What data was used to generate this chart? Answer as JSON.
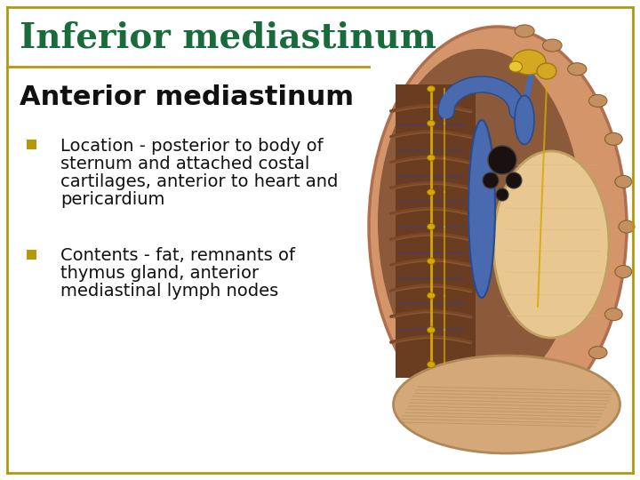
{
  "title": "Inferior mediastinum",
  "subtitle": "Anterior mediastinum",
  "title_color": "#1a6b3c",
  "subtitle_color": "#111111",
  "bullet_color": "#b8960a",
  "text_color": "#111111",
  "background_color": "#ffffff",
  "border_color": "#b8960a",
  "bullet1_lines": [
    "Location - posterior to body of",
    "sternum and attached costal",
    "cartilages, anterior to heart and",
    "pericardium"
  ],
  "bullet2_lines": [
    "Contents - fat, remnants of",
    "thymus gland, anterior",
    "mediastinal lymph nodes"
  ],
  "title_fontsize": 28,
  "subtitle_fontsize": 22,
  "bullet_fontsize": 14,
  "border_linewidth": 2.0,
  "anat_colors": {
    "outer_body": "#d4956a",
    "outer_body_edge": "#b07050",
    "inner_dark": "#8b5a3a",
    "ribs_dark": "#7a4828",
    "posterior_wall": "#6a3c20",
    "heart_pericardium": "#e8c890",
    "heart_edge": "#c0a060",
    "diaphragm": "#d4a878",
    "diaphragm_edge": "#b08858",
    "vessel_blue": "#4a6ab0",
    "vessel_blue_edge": "#2a4a90",
    "nerve_yellow": "#d4a800",
    "costal_dot": "#c49060",
    "costal_edge": "#8a6030",
    "trachea_dark": "#2a2020",
    "yellow_fat": "#d4a820"
  }
}
